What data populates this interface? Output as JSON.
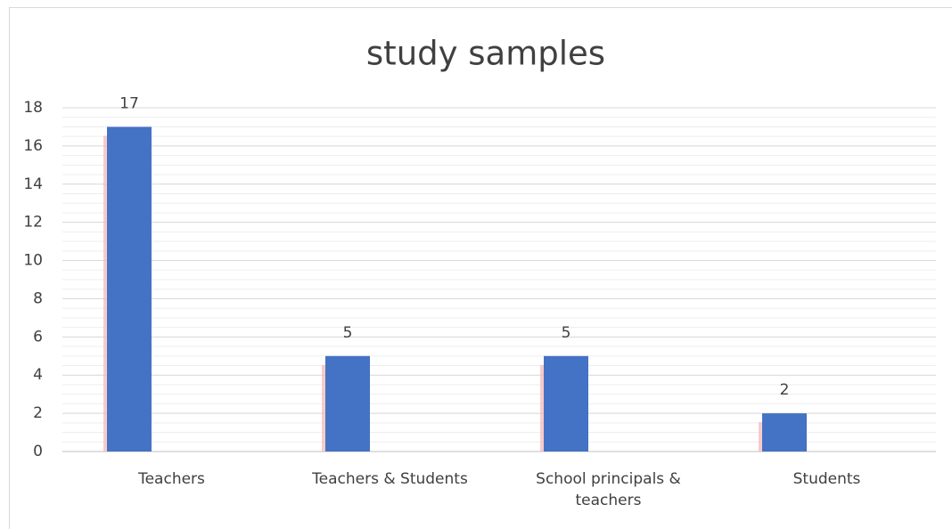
{
  "chart_data": {
    "type": "bar",
    "title": "study samples",
    "categories": [
      "Teachers",
      "Teachers & Students",
      "School principals & teachers",
      "Students"
    ],
    "values": [
      17,
      5,
      5,
      2
    ],
    "color": "#4472c4",
    "ylim": [
      0,
      18
    ],
    "yticks": [
      0,
      2,
      4,
      6,
      8,
      10,
      12,
      14,
      16,
      18
    ],
    "grid": true,
    "minor_grid": true
  }
}
